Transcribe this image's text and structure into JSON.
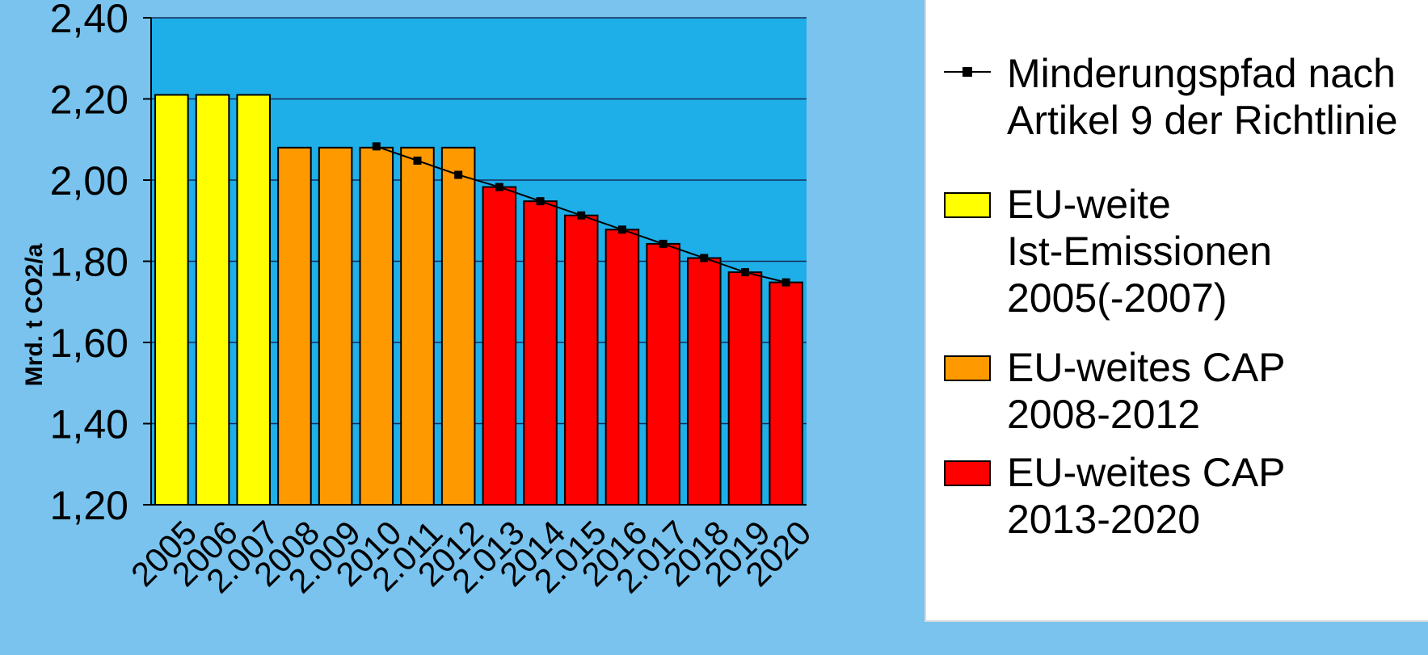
{
  "chart_data": {
    "type": "bar",
    "ylabel": "Mrd. t CO2/a",
    "ylim": [
      1.2,
      2.4
    ],
    "y_ticks": [
      "1,20",
      "1,40",
      "1,60",
      "1,80",
      "2,00",
      "2,20",
      "2,40"
    ],
    "grid": true,
    "legend_position": "right",
    "categories": [
      "2005",
      "2006",
      "2.007",
      "2008",
      "2.009",
      "2010",
      "2.011",
      "2012",
      "2.013",
      "2014",
      "2.015",
      "2016",
      "2.017",
      "2018",
      "2019",
      "2020"
    ],
    "series": [
      {
        "name": "EU-weite Ist-Emissionen 2005(-2007)",
        "type": "bar",
        "color": "#ffff00",
        "values": [
          2.21,
          2.21,
          2.21,
          null,
          null,
          null,
          null,
          null,
          null,
          null,
          null,
          null,
          null,
          null,
          null,
          null
        ]
      },
      {
        "name": "EU-weites CAP 2008-2012",
        "type": "bar",
        "color": "#ff9900",
        "values": [
          null,
          null,
          null,
          2.08,
          2.08,
          2.08,
          2.08,
          2.08,
          null,
          null,
          null,
          null,
          null,
          null,
          null,
          null
        ]
      },
      {
        "name": "EU-weites CAP 2013-2020",
        "type": "bar",
        "color": "#ff0000",
        "values": [
          null,
          null,
          null,
          null,
          null,
          null,
          null,
          null,
          1.983,
          1.948,
          1.913,
          1.878,
          1.843,
          1.808,
          1.773,
          1.748
        ]
      },
      {
        "name": "Minderungspfad nach Artikel 9 der Richtlinie",
        "type": "line",
        "color": "#000000",
        "values": [
          null,
          null,
          null,
          null,
          null,
          2.083,
          2.048,
          2.013,
          1.983,
          1.948,
          1.913,
          1.878,
          1.843,
          1.808,
          1.773,
          1.748
        ]
      }
    ]
  },
  "legend": {
    "items": [
      {
        "label": "Minderungspfad nach\nArtikel 9 der Richtlinie",
        "symbol": "line-marker"
      },
      {
        "label": "EU-weite\nIst-Emissionen\n2005(-2007)",
        "symbol": "swatch",
        "color": "#ffff00"
      },
      {
        "label": "EU-weites CAP\n2008-2012",
        "symbol": "swatch",
        "color": "#ff9900"
      },
      {
        "label": "EU-weites CAP\n2013-2020",
        "symbol": "swatch",
        "color": "#ff0000"
      }
    ]
  }
}
